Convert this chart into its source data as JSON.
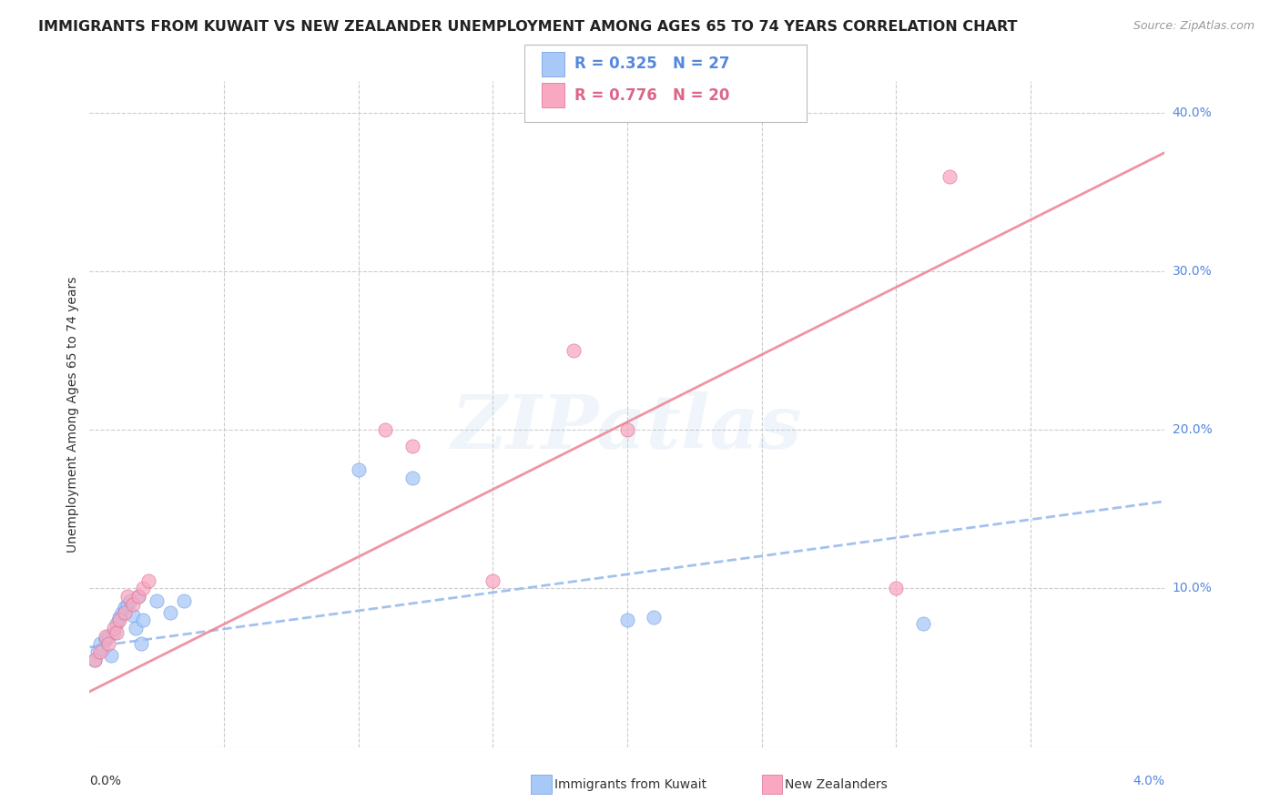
{
  "title": "IMMIGRANTS FROM KUWAIT VS NEW ZEALANDER UNEMPLOYMENT AMONG AGES 65 TO 74 YEARS CORRELATION CHART",
  "source": "Source: ZipAtlas.com",
  "ylabel": "Unemployment Among Ages 65 to 74 years",
  "xlim": [
    0.0,
    0.04
  ],
  "ylim": [
    0.0,
    0.42
  ],
  "ytick_positions": [
    0.1,
    0.2,
    0.3,
    0.4
  ],
  "ytick_labels": [
    "10.0%",
    "20.0%",
    "30.0%",
    "40.0%"
  ],
  "xtick_left_label": "0.0%",
  "xtick_right_label": "4.0%",
  "legend_line1_r": "0.325",
  "legend_line1_n": "27",
  "legend_line2_r": "0.776",
  "legend_line2_n": "20",
  "color_blue_fill": "#A8C8F8",
  "color_blue_edge": "#6699DD",
  "color_pink_fill": "#F8A8C0",
  "color_pink_edge": "#DD6688",
  "color_blue_trend": "#99BBEE",
  "color_pink_trend": "#EE8899",
  "grid_color": "#CCCCCC",
  "title_color": "#222222",
  "ylabel_color": "#333333",
  "ytick_color": "#5588DD",
  "xtick_color_right": "#5588DD",
  "xtick_color_left": "#333333",
  "watermark_text": "ZIPatlas",
  "blue_x": [
    0.0002,
    0.0003,
    0.0004,
    0.0005,
    0.0006,
    0.0007,
    0.0008,
    0.0009,
    0.001,
    0.0011,
    0.0012,
    0.0013,
    0.0014,
    0.0015,
    0.0016,
    0.0017,
    0.0018,
    0.0019,
    0.002,
    0.0025,
    0.003,
    0.0035,
    0.01,
    0.012,
    0.02,
    0.021,
    0.031
  ],
  "blue_y": [
    0.055,
    0.06,
    0.065,
    0.062,
    0.068,
    0.07,
    0.058,
    0.072,
    0.078,
    0.082,
    0.085,
    0.088,
    0.09,
    0.092,
    0.083,
    0.075,
    0.095,
    0.065,
    0.08,
    0.092,
    0.085,
    0.092,
    0.175,
    0.17,
    0.08,
    0.082,
    0.078
  ],
  "pink_x": [
    0.0002,
    0.0004,
    0.0006,
    0.0007,
    0.0009,
    0.001,
    0.0011,
    0.0013,
    0.0014,
    0.0016,
    0.0018,
    0.002,
    0.0022,
    0.011,
    0.012,
    0.015,
    0.018,
    0.02,
    0.03,
    0.032
  ],
  "pink_y": [
    0.055,
    0.06,
    0.07,
    0.065,
    0.075,
    0.072,
    0.08,
    0.085,
    0.095,
    0.09,
    0.095,
    0.1,
    0.105,
    0.2,
    0.19,
    0.105,
    0.25,
    0.2,
    0.1,
    0.36
  ],
  "blue_trend_x0": 0.0,
  "blue_trend_x1": 0.04,
  "blue_trend_y0": 0.063,
  "blue_trend_y1": 0.155,
  "pink_trend_x0": 0.0,
  "pink_trend_x1": 0.04,
  "pink_trend_y0": 0.035,
  "pink_trend_y1": 0.375,
  "marker_size": 120,
  "title_fontsize": 11.5,
  "source_fontsize": 9,
  "axis_fontsize": 10,
  "legend_fontsize": 12
}
